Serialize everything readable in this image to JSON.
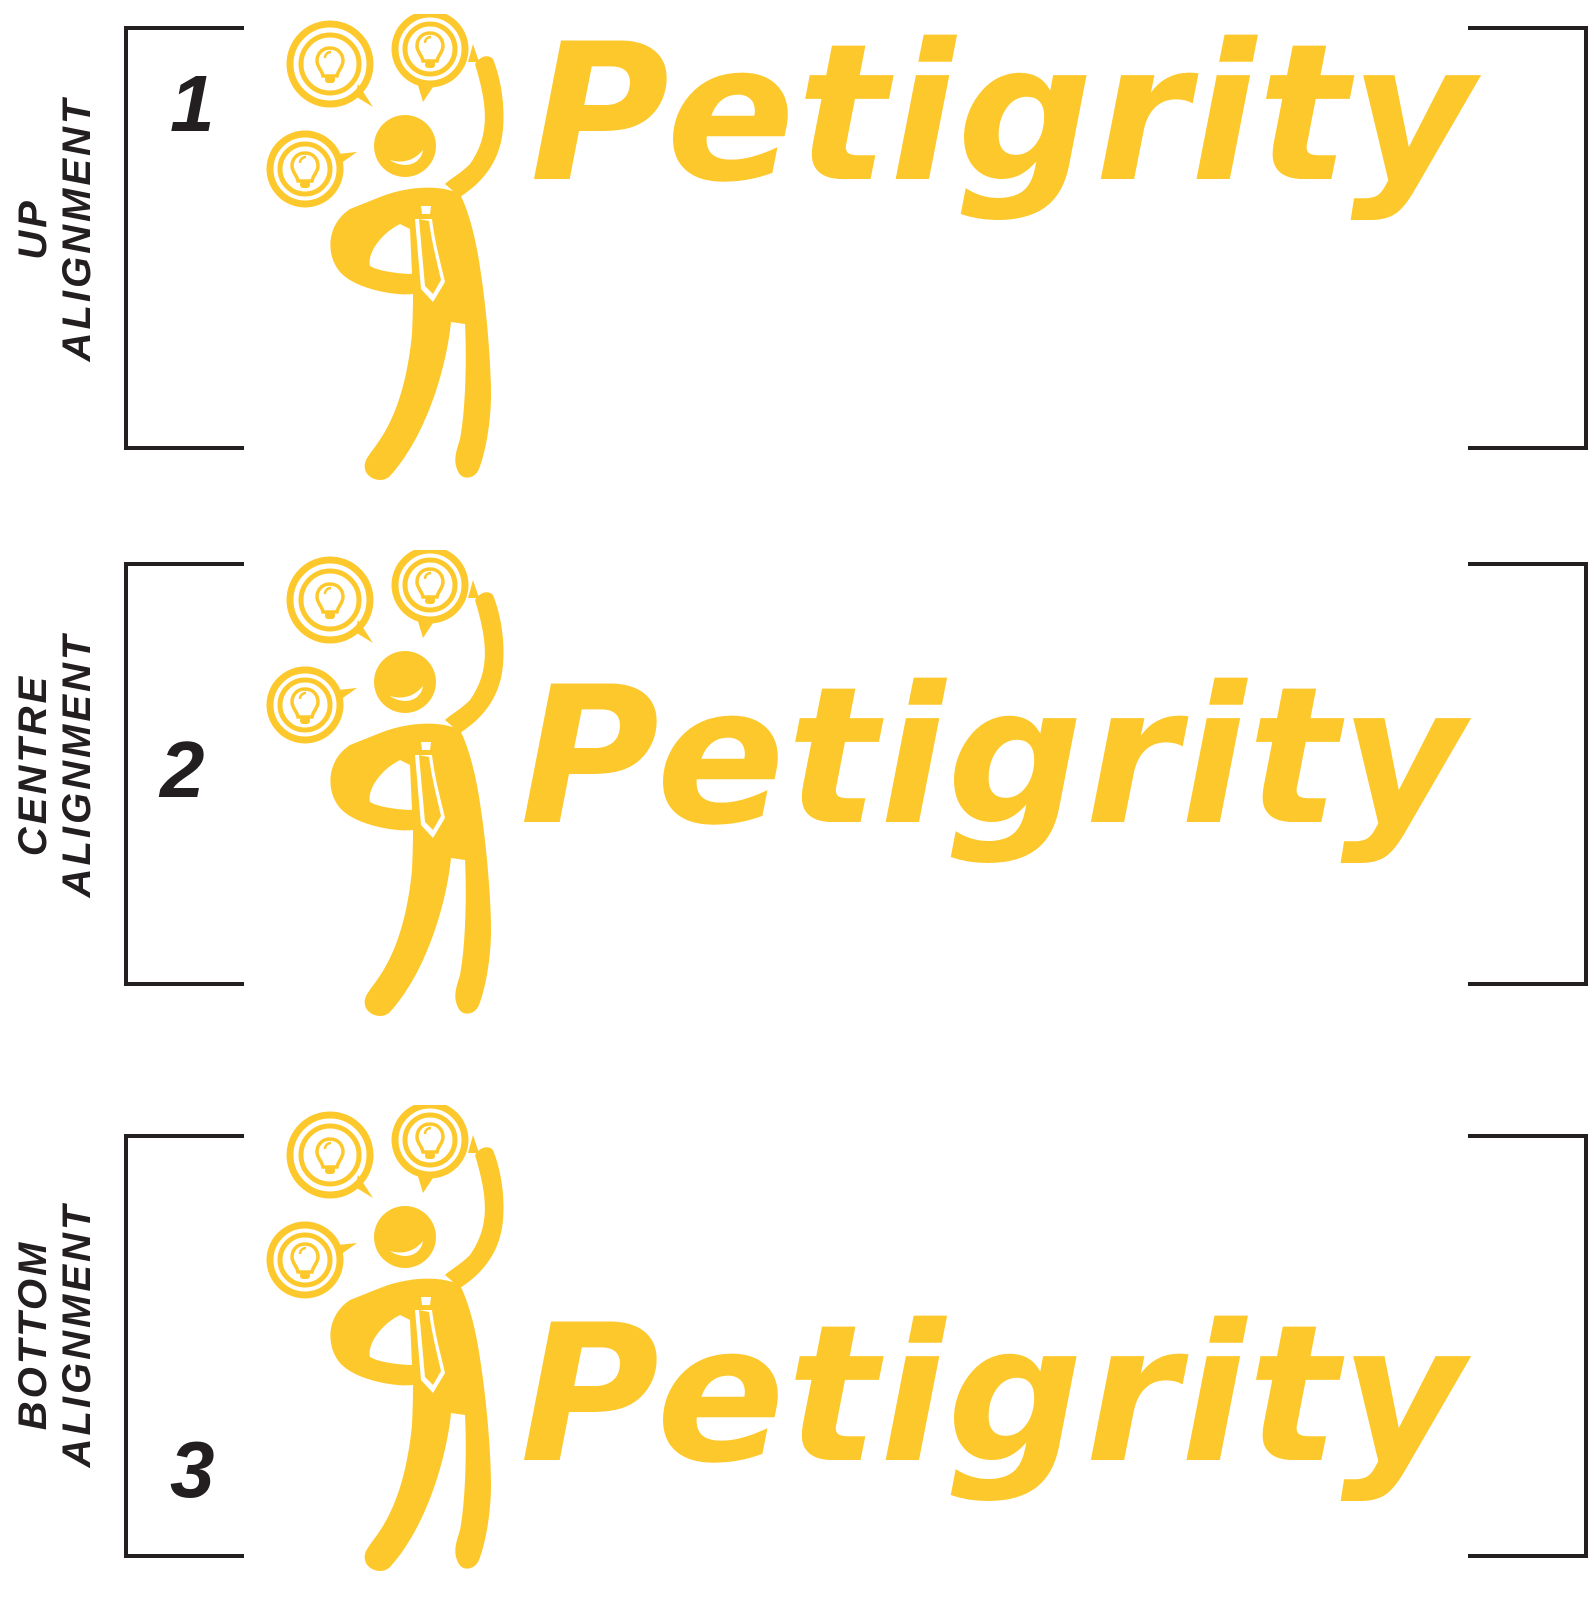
{
  "brand": {
    "accent_color": "#fdc82c",
    "ink_color": "#231f20"
  },
  "panels": [
    {
      "number": "1",
      "label_line1": "UP",
      "label_line2": "ALIGNMENT",
      "wordmark": "Petigrity",
      "mascot_icon": "thinking-man-lightbulbs-icon"
    },
    {
      "number": "2",
      "label_line1": "CENTRE",
      "label_line2": "ALIGNMENT",
      "wordmark": "Petigrity",
      "mascot_icon": "thinking-man-lightbulbs-icon"
    },
    {
      "number": "3",
      "label_line1": "BOTTOM",
      "label_line2": "ALIGNMENT",
      "wordmark": "Petigrity",
      "mascot_icon": "thinking-man-lightbulbs-icon"
    }
  ]
}
